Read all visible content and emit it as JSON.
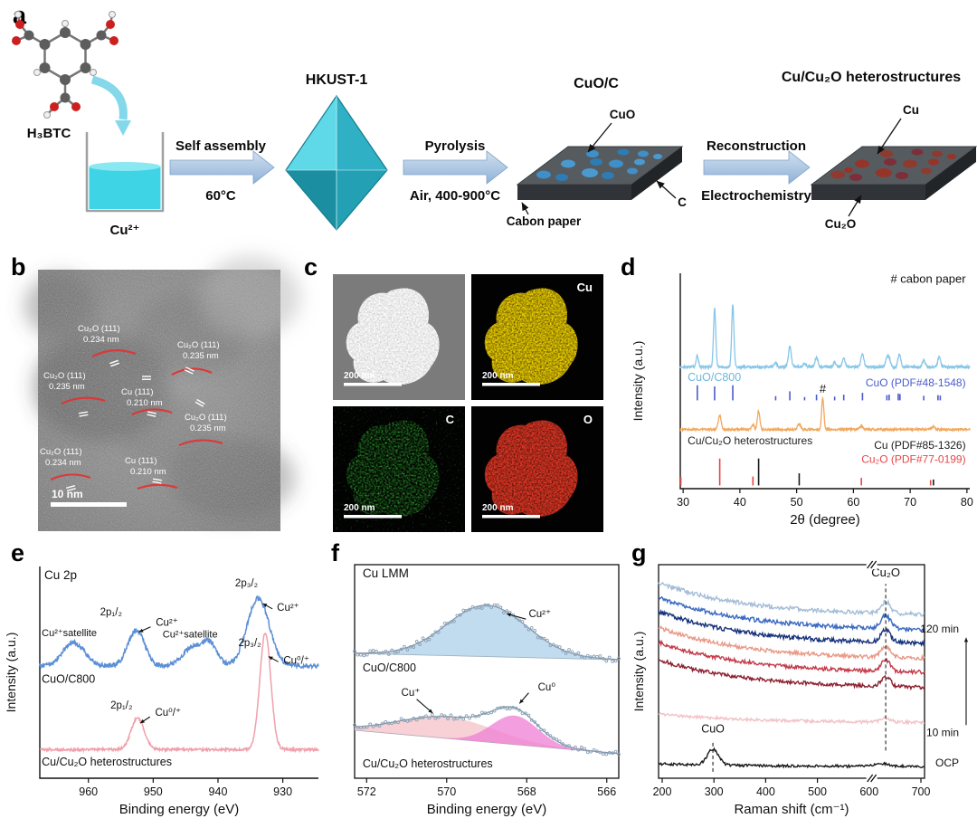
{
  "panel_letters": {
    "a": "a",
    "b": "b",
    "c": "c",
    "d": "d",
    "e": "e",
    "f": "f",
    "g": "g"
  },
  "panel_a": {
    "h3btc": "H₃BTC",
    "cu2plus": "Cu²⁺",
    "arrow1_top": "Self assembly",
    "arrow1_bottom": "60°C",
    "hkust": "HKUST-1",
    "arrow2_top": "Pyrolysis",
    "arrow2_bottom": "Air, 400-900°C",
    "cuoc_title": "CuO/C",
    "ann_cuo": "CuO",
    "ann_carbon_paper": "Cabon paper",
    "ann_c": "C",
    "arrow3_top": "Reconstruction",
    "arrow3_bottom": "Electrochemistry",
    "hetero_title": "Cu/Cu₂O heterostructures",
    "ann_cu": "Cu",
    "ann_cu2o": "Cu₂O"
  },
  "panel_b": {
    "scalebar": "10 nm",
    "annotations": [
      {
        "l1": "Cu₂O (111)",
        "l2": "0.234 nm"
      },
      {
        "l1": "Cu₂O (111)",
        "l2": "0.235 nm"
      },
      {
        "l1": "Cu₂O (111)",
        "l2": "0.235 nm"
      },
      {
        "l1": "Cu (111)",
        "l2": "0.210 nm"
      },
      {
        "l1": "Cu₂O (111)",
        "l2": "0.235 nm"
      },
      {
        "l1": "Cu₂O (111)",
        "l2": "0.234 nm"
      },
      {
        "l1": "Cu (111)",
        "l2": "0.210 nm"
      }
    ]
  },
  "panel_c": {
    "scalebar": "200 nm",
    "labels": [
      "Cu",
      "C",
      "O"
    ]
  },
  "chart_data": [
    {
      "id": "xrd",
      "type": "line",
      "xlabel": "2θ (degree)",
      "ylabel": "Intensity (a.u.)",
      "xlim": [
        29.5,
        80.5
      ],
      "xticks": [
        30,
        40,
        50,
        60,
        70,
        80
      ],
      "series": [
        {
          "name": "CuO/C800",
          "color": "#88c6e6",
          "baseline": 0.565,
          "noise": 0.006,
          "peaks": [
            [
              32.5,
              0.055,
              0.2
            ],
            [
              35.55,
              0.27,
              0.2
            ],
            [
              38.75,
              0.29,
              0.2
            ],
            [
              46.3,
              0.02,
              0.25
            ],
            [
              48.8,
              0.095,
              0.25
            ],
            [
              51.4,
              0.015,
              0.25
            ],
            [
              53.5,
              0.045,
              0.25
            ],
            [
              56.7,
              0.02,
              0.25
            ],
            [
              58.3,
              0.04,
              0.25
            ],
            [
              61.6,
              0.06,
              0.25
            ],
            [
              65.9,
              0.035,
              0.25
            ],
            [
              66.3,
              0.035,
              0.25
            ],
            [
              68.1,
              0.06,
              0.25
            ],
            [
              72.4,
              0.03,
              0.25
            ],
            [
              75.1,
              0.045,
              0.25
            ]
          ]
        },
        {
          "name": "Cu/Cu₂O heterostructures",
          "color": "#f1a85e",
          "baseline": 0.275,
          "noise": 0.005,
          "peaks": [
            [
              36.45,
              0.065,
              0.25
            ],
            [
              42.3,
              0.02,
              0.22
            ],
            [
              43.3,
              0.085,
              0.22
            ],
            [
              50.45,
              0.025,
              0.25
            ],
            [
              54.6,
              0.145,
              0.2
            ],
            [
              61.4,
              0.015,
              0.3
            ],
            [
              74.1,
              0.012,
              0.3
            ]
          ]
        }
      ],
      "sticks": [
        {
          "name": "CuO (PDF#48-1548)",
          "color": "#4a5ccc",
          "base": 0.41,
          "maxh": 0.07,
          "pos": [
            [
              32.5,
              1
            ],
            [
              35.55,
              0.92
            ],
            [
              38.75,
              1
            ],
            [
              46.3,
              0.28
            ],
            [
              48.8,
              0.6
            ],
            [
              51.4,
              0.22
            ],
            [
              53.5,
              0.38
            ],
            [
              56.7,
              0.25
            ],
            [
              58.3,
              0.38
            ],
            [
              61.6,
              0.5
            ],
            [
              65.9,
              0.35
            ],
            [
              66.3,
              0.38
            ],
            [
              67.9,
              0.45
            ],
            [
              68.2,
              0.42
            ],
            [
              72.4,
              0.3
            ],
            [
              74.9,
              0.35
            ],
            [
              75.3,
              0.32
            ]
          ]
        },
        {
          "name": "Cu (PDF#85-1326)",
          "color": "#1a1a1a",
          "base": 0.015,
          "maxh": 0.125,
          "pos": [
            [
              43.3,
              1
            ],
            [
              50.45,
              0.45
            ],
            [
              74.1,
              0.22
            ]
          ]
        },
        {
          "name": "Cu₂O (PDF#77-0199)",
          "color": "#e84545",
          "base": 0.015,
          "maxh": 0.125,
          "pos": [
            [
              29.6,
              0.32
            ],
            [
              36.45,
              1
            ],
            [
              42.3,
              0.33
            ],
            [
              61.4,
              0.28
            ],
            [
              73.6,
              0.2
            ]
          ]
        }
      ],
      "texts": [
        {
          "t": "# cabon paper",
          "x": 79.8,
          "y": 0.955,
          "color": "#111111",
          "size": 13,
          "anchor": "end"
        },
        {
          "t": "CuO/C800",
          "x": 30.8,
          "y": 0.5,
          "color": "#6fb6dc",
          "size": 12.5,
          "anchor": "start"
        },
        {
          "t": "CuO (PDF#48-1548)",
          "x": 79.8,
          "y": 0.475,
          "color": "#4a5ccc",
          "size": 12,
          "anchor": "end"
        },
        {
          "t": "Cu/Cu₂O heterostructures",
          "x": 30.8,
          "y": 0.205,
          "color": "#222222",
          "size": 12,
          "anchor": "start"
        },
        {
          "t": "Cu (PDF#85-1326)",
          "x": 79.8,
          "y": 0.185,
          "color": "#1a1a1a",
          "size": 12,
          "anchor": "end"
        },
        {
          "t": "Cu₂O (PDF#77-0199)",
          "x": 79.8,
          "y": 0.12,
          "color": "#e84545",
          "size": 12,
          "anchor": "end"
        },
        {
          "t": "#",
          "x": 54.6,
          "y": 0.445,
          "color": "#111111",
          "size": 13,
          "anchor": "middle"
        }
      ]
    },
    {
      "id": "xps",
      "type": "line",
      "xlabel": "Binding energy (eV)",
      "ylabel": "Intensity (a.u.)",
      "xlim": [
        967.5,
        924.5
      ],
      "xticks": [
        960,
        950,
        940,
        930
      ],
      "series": [
        {
          "name": "CuO/C800",
          "color": "#5b8fd6",
          "baseline": 0.53,
          "noise": 0.011,
          "peaks": [
            [
              962.3,
              0.11,
              1.7
            ],
            [
              952.6,
              0.17,
              1.3
            ],
            [
              943.9,
              0.09,
              1.5
            ],
            [
              941.2,
              0.1,
              1.1
            ],
            [
              933.8,
              0.32,
              1.7
            ]
          ]
        },
        {
          "name": "Cu/Cu₂O heterostructures",
          "color": "#f0a0aa",
          "baseline": 0.135,
          "noise": 0.006,
          "peaks": [
            [
              952.4,
              0.15,
              1.0
            ],
            [
              932.7,
              0.55,
              0.85
            ]
          ]
        }
      ],
      "texts": [
        {
          "t": "Cu 2p",
          "x": 966.8,
          "y": 0.94,
          "size": 13.5,
          "anchor": "start"
        },
        {
          "t": "Cu²⁺satellite",
          "x": 967.2,
          "y": 0.67,
          "size": 11,
          "anchor": "start"
        },
        {
          "t": "2p₁/₂",
          "x": 956.5,
          "y": 0.77,
          "size": 11.5,
          "anchor": "middle"
        },
        {
          "t": "Cu²⁺",
          "x": 949.6,
          "y": 0.72,
          "size": 11.5,
          "anchor": "start"
        },
        {
          "t": "Cu²⁺satellite",
          "x": 944.3,
          "y": 0.665,
          "size": 11,
          "anchor": "middle"
        },
        {
          "t": "2p₃/₂",
          "x": 935.6,
          "y": 0.905,
          "size": 11.5,
          "anchor": "middle"
        },
        {
          "t": "Cu²⁺",
          "x": 930.9,
          "y": 0.79,
          "size": 11.5,
          "anchor": "start"
        },
        {
          "t": "CuO/C800",
          "x": 967.2,
          "y": 0.45,
          "size": 12.5,
          "anchor": "start"
        },
        {
          "t": "2p₁/₂",
          "x": 954.9,
          "y": 0.33,
          "size": 11.5,
          "anchor": "middle"
        },
        {
          "t": "Cu⁰/⁺",
          "x": 949.7,
          "y": 0.295,
          "size": 11.5,
          "anchor": "start"
        },
        {
          "t": "2p₃/₂",
          "x": 935.1,
          "y": 0.625,
          "size": 11.5,
          "anchor": "middle"
        },
        {
          "t": "Cu⁰/⁺",
          "x": 929.9,
          "y": 0.54,
          "size": 11.5,
          "anchor": "start"
        },
        {
          "t": "Cu/Cu₂O heterostructures",
          "x": 967.2,
          "y": 0.06,
          "size": 12.5,
          "anchor": "start"
        }
      ],
      "arrows": [
        [
          950.4,
          0.715,
          952.2,
          0.69
        ],
        [
          931.6,
          0.8,
          933.1,
          0.825
        ],
        [
          950.5,
          0.29,
          952.0,
          0.26
        ],
        [
          930.7,
          0.55,
          932.2,
          0.575
        ]
      ]
    },
    {
      "id": "auger",
      "type": "line",
      "xlabel": "Binding energy (eV)",
      "xlim": [
        572.3,
        565.7
      ],
      "xticks": [
        572,
        570,
        568,
        566
      ],
      "groups": [
        {
          "name": "CuO/C800",
          "base": [
            0.585,
            0.555
          ],
          "ptseed": 11,
          "noise": 0.013,
          "components": [
            {
              "c": 569.0,
              "h": 0.24,
              "w": 1.0,
              "fill": "#aed0ea",
              "label": "Cu²⁺"
            }
          ]
        },
        {
          "name": "Cu/Cu₂O heterostructures",
          "base": [
            0.225,
            0.115
          ],
          "ptseed": 23,
          "noise": 0.01,
          "components": [
            {
              "c": 570.0,
              "h": 0.1,
              "w": 1.2,
              "fill": "#f4c2c8",
              "label": "Cu⁺"
            },
            {
              "c": 568.3,
              "h": 0.135,
              "w": 0.58,
              "fill": "#ef7fd4",
              "label": "Cu⁰"
            }
          ]
        }
      ],
      "texts": [
        {
          "t": "Cu LMM",
          "x": 572.1,
          "y": 0.94,
          "size": 13.5,
          "anchor": "start"
        },
        {
          "t": "Cu²⁺",
          "x": 567.95,
          "y": 0.755,
          "size": 11.5,
          "anchor": "start"
        },
        {
          "t": "CuO/C800",
          "x": 572.1,
          "y": 0.5,
          "size": 12.5,
          "anchor": "start"
        },
        {
          "t": "Cu⁺",
          "x": 570.9,
          "y": 0.385,
          "size": 11.5,
          "anchor": "middle"
        },
        {
          "t": "Cu⁰",
          "x": 567.72,
          "y": 0.41,
          "size": 11.5,
          "anchor": "start"
        },
        {
          "t": "Cu/Cu₂O heterostructures",
          "x": 572.1,
          "y": 0.05,
          "size": 12.5,
          "anchor": "start"
        }
      ],
      "arrows": [
        [
          568.02,
          0.745,
          568.5,
          0.77
        ],
        [
          570.75,
          0.37,
          570.35,
          0.305
        ],
        [
          567.95,
          0.4,
          568.18,
          0.35
        ]
      ]
    },
    {
      "id": "raman",
      "type": "line",
      "xlabel": "Raman shift (cm⁻¹)",
      "ylabel": "Intensity (a.u.)",
      "xlim": [
        193,
        707
      ],
      "xticks": [
        200,
        300,
        400,
        500,
        600,
        700
      ],
      "break_x": 605,
      "dashed_lines": [
        {
          "x": 298,
          "y0": 0.03,
          "y1": 0.175,
          "label": "CuO",
          "ly": 0.215,
          "lsize": 12.5
        },
        {
          "x": 632,
          "y0": 0.13,
          "y1": 0.91,
          "label": "Cu₂O",
          "ly": 0.945,
          "lsize": 13
        }
      ],
      "right_labels": [
        {
          "t": "120 min",
          "y": 0.7
        },
        {
          "t": "10 min",
          "y": 0.215
        },
        {
          "t": "OCP",
          "y": 0.073
        }
      ],
      "series": [
        {
          "name": "OCP",
          "color": "#1a1a1a",
          "baseline": 0.055,
          "amp": 0.012,
          "noise": 0.006,
          "peaks": [
            [
              298,
              0.075,
              11
            ],
            [
              625,
              0.012,
              14
            ]
          ]
        },
        {
          "name": "10 min",
          "color": "#f2c2c6",
          "baseline": 0.26,
          "amp": 0.04,
          "noise": 0.007,
          "peaks": [
            [
              632,
              0.018,
              10
            ]
          ]
        },
        {
          "name": "",
          "color": "#8c2130",
          "baseline": 0.42,
          "amp": 0.13,
          "noise": 0.009,
          "peaks": [
            [
              632,
              0.045,
              9
            ]
          ]
        },
        {
          "name": "",
          "color": "#c43a4a",
          "baseline": 0.49,
          "amp": 0.14,
          "noise": 0.009,
          "peaks": [
            [
              632,
              0.05,
              9
            ]
          ]
        },
        {
          "name": "",
          "color": "#e89a88",
          "baseline": 0.555,
          "amp": 0.145,
          "noise": 0.009,
          "peaks": [
            [
              632,
              0.05,
              9
            ]
          ]
        },
        {
          "name": "",
          "color": "#17327c",
          "baseline": 0.625,
          "amp": 0.15,
          "noise": 0.01,
          "peaks": [
            [
              632,
              0.06,
              9
            ]
          ]
        },
        {
          "name": "",
          "color": "#3a6ac2",
          "baseline": 0.69,
          "amp": 0.15,
          "noise": 0.01,
          "peaks": [
            [
              632,
              0.06,
              9
            ]
          ]
        },
        {
          "name": "120 min",
          "color": "#a4bdd8",
          "baseline": 0.76,
          "amp": 0.15,
          "noise": 0.01,
          "peaks": [
            [
              632,
              0.055,
              9
            ]
          ]
        }
      ]
    }
  ]
}
